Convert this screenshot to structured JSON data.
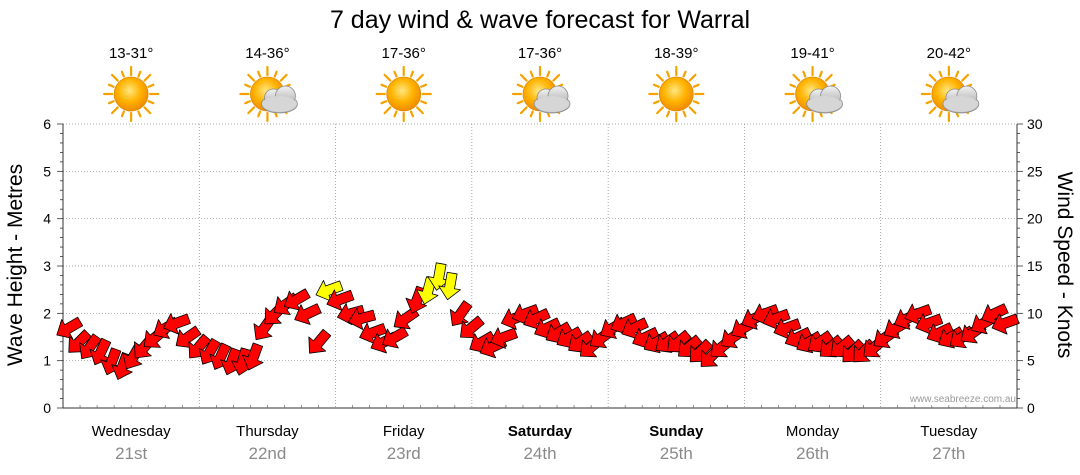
{
  "title": "7 day wind & wave forecast for Warral",
  "credit": "www.seabreeze.com.au",
  "weather": [
    {
      "temp": "13-31°",
      "icon": "sun-icon"
    },
    {
      "temp": "14-36°",
      "icon": "sun-cloud-icon"
    },
    {
      "temp": "17-36°",
      "icon": "sun-icon"
    },
    {
      "temp": "17-36°",
      "icon": "sun-cloud-icon"
    },
    {
      "temp": "18-39°",
      "icon": "sun-icon"
    },
    {
      "temp": "19-41°",
      "icon": "sun-cloud-icon"
    },
    {
      "temp": "20-42°",
      "icon": "sun-cloud-icon"
    }
  ],
  "days": [
    {
      "name": "Wednesday",
      "date": "21st",
      "bold": false
    },
    {
      "name": "Thursday",
      "date": "22nd",
      "bold": false
    },
    {
      "name": "Friday",
      "date": "23rd",
      "bold": false
    },
    {
      "name": "Saturday",
      "date": "24th",
      "bold": true
    },
    {
      "name": "Sunday",
      "date": "25th",
      "bold": true
    },
    {
      "name": "Monday",
      "date": "26th",
      "bold": false
    },
    {
      "name": "Tuesday",
      "date": "27th",
      "bold": false
    }
  ],
  "colors": {
    "strong": "#ff0000",
    "light": "#ffff00",
    "outline": "#000000",
    "grid": "#888888"
  },
  "chart_data": {
    "type": "line",
    "title": "7 day wind & wave forecast for Warral",
    "ylabel_left": "Wave Height - Metres",
    "ylabel_right": "Wind Speed - Knots",
    "ylim_left": [
      0,
      6
    ],
    "ylim_right": [
      0,
      30
    ],
    "yticks_left": [
      "0",
      "1",
      "2",
      "3",
      "4",
      "5",
      "6"
    ],
    "yticks_right": [
      "0",
      "5",
      "10",
      "15",
      "20",
      "25",
      "30"
    ],
    "grid": true,
    "x_unit": "day index (0 = Wednesday 21st 00:00)",
    "series": [
      {
        "name": "Wind Speed - Knots",
        "axis": "right",
        "x": [
          0.05,
          0.12,
          0.2,
          0.28,
          0.36,
          0.44,
          0.52,
          0.6,
          0.68,
          0.76,
          0.84,
          0.92,
          1.0,
          1.08,
          1.16,
          1.24,
          1.32,
          1.4,
          1.48,
          1.56,
          1.64,
          1.72,
          1.8,
          1.88,
          1.96,
          2.04,
          2.12,
          2.2,
          2.28,
          2.36,
          2.44,
          2.52,
          2.6,
          2.68,
          2.76,
          2.84,
          2.92,
          3.0,
          3.08,
          3.16,
          3.24,
          3.32,
          3.4,
          3.48,
          3.56,
          3.64,
          3.72,
          3.8,
          3.88,
          3.96,
          4.04,
          4.12,
          4.2,
          4.28,
          4.36,
          4.44,
          4.52,
          4.6,
          4.68,
          4.76,
          4.84,
          4.92,
          5.0,
          5.08,
          5.16,
          5.24,
          5.32,
          5.4,
          5.48,
          5.56,
          5.64,
          5.72,
          5.8,
          5.88,
          5.96,
          6.04,
          6.12,
          6.2,
          6.28,
          6.36,
          6.44,
          6.52,
          6.6,
          6.68,
          6.76,
          6.84,
          6.92
        ],
        "values": [
          8.5,
          7.0,
          6.5,
          6.0,
          5.0,
          4.5,
          5.5,
          6.5,
          7.5,
          8.5,
          9.0,
          7.5,
          6.5,
          6.0,
          5.5,
          5.0,
          5.0,
          5.5,
          8.5,
          10.0,
          11.0,
          11.5,
          10.0,
          7.0,
          12.5,
          11.5,
          10.0,
          9.5,
          8.0,
          7.0,
          7.5,
          9.5,
          11.5,
          12.5,
          14.0,
          13.0,
          10.0,
          8.5,
          7.0,
          6.5,
          7.5,
          9.5,
          10.0,
          9.5,
          8.5,
          8.0,
          7.5,
          7.0,
          6.5,
          7.5,
          8.5,
          9.0,
          8.5,
          7.5,
          7.0,
          7.0,
          7.0,
          6.5,
          6.0,
          5.5,
          6.5,
          7.5,
          8.5,
          9.5,
          10.0,
          9.5,
          8.5,
          7.5,
          7.0,
          7.0,
          6.5,
          6.5,
          6.0,
          6.0,
          6.5,
          7.5,
          8.5,
          9.5,
          10.0,
          9.0,
          8.0,
          7.5,
          7.5,
          8.0,
          9.0,
          10.0,
          9.0
        ],
        "direction_deg": [
          240,
          225,
          215,
          205,
          200,
          200,
          210,
          220,
          230,
          240,
          250,
          235,
          220,
          210,
          205,
          200,
          195,
          200,
          215,
          225,
          235,
          240,
          245,
          220,
          250,
          250,
          255,
          255,
          250,
          245,
          240,
          235,
          200,
          195,
          190,
          190,
          215,
          230,
          240,
          245,
          250,
          250,
          250,
          245,
          245,
          240,
          240,
          235,
          230,
          235,
          240,
          245,
          245,
          245,
          240,
          235,
          230,
          230,
          225,
          225,
          230,
          235,
          240,
          245,
          250,
          250,
          250,
          245,
          240,
          235,
          230,
          230,
          225,
          225,
          230,
          235,
          240,
          245,
          250,
          250,
          245,
          240,
          235,
          235,
          240,
          245,
          250
        ]
      }
    ]
  }
}
